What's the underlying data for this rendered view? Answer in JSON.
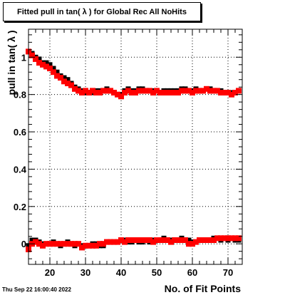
{
  "chart_data": {
    "type": "scatter",
    "title": "Fitted pull in tan( λ ) for Global Rec All NoHits",
    "xlabel": "No. of Fit Points",
    "ylabel": "pull in tan( λ )",
    "timestamp": "Thu Sep 22 16:00:40 2022",
    "xlim": [
      14,
      74
    ],
    "ylim": [
      -0.11,
      1.15
    ],
    "xticks": [
      20,
      30,
      40,
      50,
      60,
      70
    ],
    "xtick_labels": [
      "20",
      "30",
      "40",
      "50",
      "60",
      "70"
    ],
    "yticks": [
      0,
      0.2,
      0.4,
      0.6,
      0.8,
      1
    ],
    "ytick_labels": [
      "0",
      "0.2",
      "0.4",
      "0.6",
      "0.8",
      "1"
    ],
    "grid": true,
    "series": [
      {
        "color": "#000000",
        "marker": "square",
        "x": [
          14,
          15,
          16,
          17,
          18,
          19,
          20,
          21,
          22,
          23,
          24,
          25,
          26,
          27,
          28,
          29,
          30,
          31,
          32,
          33,
          34,
          35,
          36,
          37,
          38,
          39,
          40,
          41,
          42,
          43,
          44,
          45,
          46,
          47,
          48,
          49,
          50,
          51,
          52,
          53,
          54,
          55,
          56,
          57,
          58,
          59,
          60,
          61,
          62,
          63,
          64,
          65,
          66,
          67,
          68,
          69,
          70,
          71,
          72,
          73
        ],
        "y": [
          1.03,
          1.02,
          1.0,
          0.99,
          0.97,
          0.97,
          0.96,
          0.94,
          0.92,
          0.9,
          0.89,
          0.88,
          0.86,
          0.84,
          0.83,
          0.82,
          0.81,
          0.81,
          0.81,
          0.82,
          0.82,
          0.82,
          0.83,
          0.82,
          0.81,
          0.8,
          0.8,
          0.82,
          0.83,
          0.82,
          0.82,
          0.83,
          0.83,
          0.82,
          0.82,
          0.82,
          0.82,
          0.81,
          0.82,
          0.82,
          0.82,
          0.82,
          0.82,
          0.83,
          0.83,
          0.82,
          0.82,
          0.83,
          0.82,
          0.82,
          0.83,
          0.83,
          0.82,
          0.82,
          0.82,
          0.81,
          0.81,
          0.81,
          0.81,
          0.82
        ]
      },
      {
        "color": "#ff0000",
        "marker": "square",
        "x": [
          14,
          15,
          16,
          17,
          18,
          19,
          20,
          21,
          22,
          23,
          24,
          25,
          26,
          27,
          28,
          29,
          30,
          31,
          32,
          33,
          34,
          35,
          36,
          37,
          38,
          39,
          40,
          41,
          42,
          43,
          44,
          45,
          46,
          47,
          48,
          49,
          50,
          51,
          52,
          53,
          54,
          55,
          56,
          57,
          58,
          59,
          60,
          61,
          62,
          63,
          64,
          65,
          66,
          67,
          68,
          69,
          70,
          71,
          72,
          73
        ],
        "y": [
          1.03,
          1.01,
          0.99,
          0.97,
          0.96,
          0.95,
          0.94,
          0.92,
          0.9,
          0.89,
          0.87,
          0.86,
          0.85,
          0.83,
          0.82,
          0.81,
          0.82,
          0.81,
          0.82,
          0.81,
          0.81,
          0.82,
          0.82,
          0.82,
          0.81,
          0.8,
          0.79,
          0.81,
          0.82,
          0.81,
          0.81,
          0.82,
          0.82,
          0.82,
          0.82,
          0.81,
          0.82,
          0.81,
          0.81,
          0.81,
          0.81,
          0.81,
          0.81,
          0.82,
          0.82,
          0.82,
          0.81,
          0.82,
          0.82,
          0.82,
          0.83,
          0.82,
          0.82,
          0.82,
          0.81,
          0.81,
          0.81,
          0.8,
          0.81,
          0.82
        ]
      },
      {
        "color": "#000000",
        "marker": "square",
        "x": [
          14,
          15,
          16,
          17,
          18,
          19,
          20,
          21,
          22,
          23,
          24,
          25,
          26,
          27,
          28,
          29,
          30,
          31,
          32,
          33,
          34,
          35,
          36,
          37,
          38,
          39,
          40,
          41,
          42,
          43,
          44,
          45,
          46,
          47,
          48,
          49,
          50,
          51,
          52,
          53,
          54,
          55,
          56,
          57,
          58,
          59,
          60,
          61,
          62,
          63,
          64,
          65,
          66,
          67,
          68,
          69,
          70,
          71,
          72,
          73
        ],
        "y": [
          -0.01,
          0.02,
          0.02,
          0.01,
          0.0,
          0.0,
          0.0,
          0.01,
          0.0,
          -0.01,
          0.0,
          0.01,
          0.0,
          -0.01,
          0.0,
          -0.01,
          -0.01,
          -0.01,
          0.0,
          0.0,
          -0.01,
          -0.01,
          0.01,
          0.01,
          0.01,
          0.01,
          0.02,
          0.02,
          0.01,
          0.01,
          0.02,
          0.01,
          0.01,
          0.02,
          0.01,
          0.02,
          0.02,
          0.02,
          0.03,
          0.02,
          0.02,
          0.02,
          0.02,
          0.03,
          0.02,
          0.02,
          0.01,
          0.01,
          0.02,
          0.02,
          0.02,
          0.02,
          0.03,
          0.03,
          0.02,
          0.03,
          0.02,
          0.03,
          0.02,
          0.02
        ]
      },
      {
        "color": "#ff0000",
        "marker": "square",
        "x": [
          14,
          15,
          16,
          17,
          18,
          19,
          20,
          21,
          22,
          23,
          24,
          25,
          26,
          27,
          28,
          29,
          30,
          31,
          32,
          33,
          34,
          35,
          36,
          37,
          38,
          39,
          40,
          41,
          42,
          43,
          44,
          45,
          46,
          47,
          48,
          49,
          50,
          51,
          52,
          53,
          54,
          55,
          56,
          57,
          58,
          59,
          60,
          61,
          62,
          63,
          64,
          65,
          66,
          67,
          68,
          69,
          70,
          71,
          72,
          73
        ],
        "y": [
          -0.03,
          0.0,
          0.01,
          0.0,
          -0.01,
          0.0,
          0.0,
          0.0,
          0.0,
          0.0,
          0.0,
          0.0,
          0.0,
          0.0,
          0.0,
          -0.02,
          -0.01,
          -0.01,
          -0.01,
          -0.01,
          0.0,
          0.0,
          0.01,
          0.01,
          0.01,
          0.01,
          0.02,
          0.01,
          0.02,
          0.02,
          0.02,
          0.02,
          0.02,
          0.02,
          0.02,
          0.01,
          0.02,
          0.02,
          0.02,
          0.02,
          0.01,
          0.02,
          0.02,
          0.02,
          0.02,
          0.0,
          0.0,
          0.01,
          0.02,
          0.02,
          0.02,
          0.02,
          0.02,
          0.03,
          0.03,
          0.03,
          0.03,
          0.03,
          0.03,
          0.03
        ]
      }
    ]
  }
}
